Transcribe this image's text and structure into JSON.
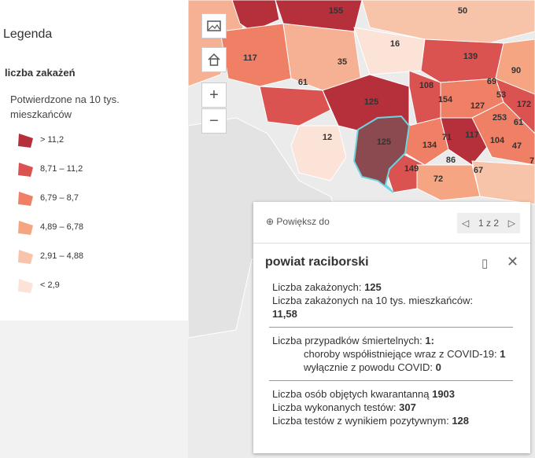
{
  "legend": {
    "title": "Legenda",
    "subtitle": "liczba zakażeń",
    "description": "Potwierdzone na 10 tys. mieszkańców",
    "items": [
      {
        "label": "> 11,2",
        "color": "#b5303a"
      },
      {
        "label": "8,71 – 11,2",
        "color": "#db5350"
      },
      {
        "label": "6,79 – 8,7",
        "color": "#ef7f65"
      },
      {
        "label": "4,89 – 6,78",
        "color": "#f5a582"
      },
      {
        "label": "2,91 – 4,88",
        "color": "#f8c4a9"
      },
      {
        "label": "< 2,9",
        "color": "#fbe3d7"
      }
    ]
  },
  "map": {
    "labels": [
      "155",
      "50",
      "16",
      "117",
      "35",
      "139",
      "61",
      "108",
      "69",
      "90",
      "125",
      "154",
      "127",
      "53",
      "172",
      "253",
      "61",
      "12",
      "125",
      "134",
      "71",
      "117",
      "104",
      "47",
      "86",
      "149",
      "67",
      "72",
      "7"
    ],
    "controls": {
      "basemap_icon": "image-icon",
      "home_icon": "home-icon",
      "zoom_in": "+",
      "zoom_out": "−"
    }
  },
  "popup": {
    "zoom_label": "Powiększ do",
    "pager": "1 z 2",
    "title": "powiat raciborski",
    "cases_label": "Liczba zakażonych:",
    "cases_value": "125",
    "cases_per10k_label": "Liczba zakażonych na 10 tys. mieszkańców:",
    "cases_per10k_value": "11,58",
    "deaths_label": "Liczba przypadków śmiertelnych:",
    "deaths_value": "1:",
    "comorb_label": "choroby współistniejące wraz z COVID-19:",
    "comorb_value": "1",
    "covid_only_label": "wyłącznie z powodu COVID:",
    "covid_only_value": "0",
    "quarantine_label": "Liczba osób objętych kwarantanną",
    "quarantine_value": "1903",
    "tests_label": "Liczba wykonanych testów:",
    "tests_value": "307",
    "positive_label": "Liczba testów z wynikiem pozytywnym:",
    "positive_value": "128"
  }
}
